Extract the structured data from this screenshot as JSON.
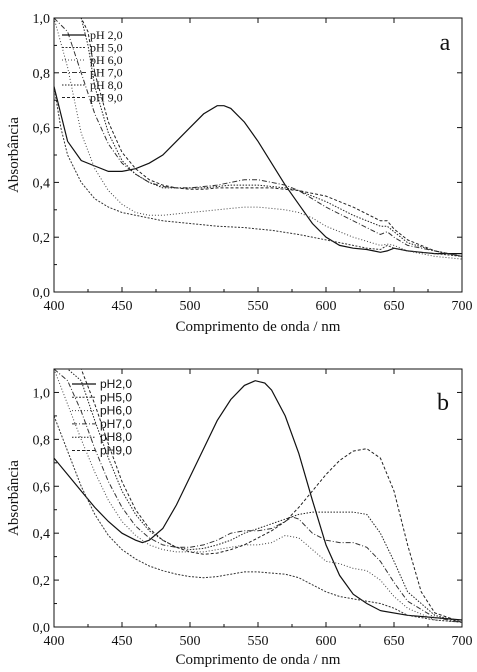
{
  "chart_data": [
    {
      "type": "line",
      "panel_label": "a",
      "xlabel": "Comprimento de onda / nm",
      "ylabel": "Absorbância",
      "xlim": [
        400,
        700
      ],
      "ylim": [
        0,
        1.0
      ],
      "xticks": [
        "400",
        "450",
        "500",
        "550",
        "600",
        "650",
        "700"
      ],
      "yticks": [
        "0,0",
        "0,2",
        "0,4",
        "0,6",
        "0,8",
        "1,0"
      ],
      "legend_position": "top-left",
      "series": [
        {
          "name": "pH 2,0",
          "color": "#111111",
          "dash": "",
          "x": [
            400,
            405,
            410,
            420,
            430,
            440,
            450,
            460,
            470,
            480,
            490,
            500,
            510,
            520,
            525,
            530,
            540,
            550,
            560,
            570,
            580,
            590,
            600,
            610,
            620,
            630,
            635,
            640,
            645,
            650,
            660,
            670,
            680,
            690,
            700
          ],
          "y": [
            0.75,
            0.65,
            0.55,
            0.48,
            0.46,
            0.44,
            0.44,
            0.45,
            0.47,
            0.5,
            0.55,
            0.6,
            0.65,
            0.68,
            0.68,
            0.67,
            0.62,
            0.55,
            0.47,
            0.39,
            0.32,
            0.25,
            0.2,
            0.17,
            0.16,
            0.155,
            0.15,
            0.145,
            0.15,
            0.16,
            0.15,
            0.145,
            0.14,
            0.14,
            0.14
          ]
        },
        {
          "name": "pH 5,0",
          "color": "#333333",
          "dash": "2,1.5",
          "x": [
            400,
            405,
            410,
            420,
            430,
            440,
            450,
            460,
            480,
            500,
            520,
            540,
            550,
            560,
            580,
            600,
            620,
            630,
            640,
            645,
            650,
            660,
            680,
            700
          ],
          "y": [
            0.75,
            0.6,
            0.5,
            0.4,
            0.34,
            0.31,
            0.29,
            0.28,
            0.26,
            0.25,
            0.24,
            0.235,
            0.23,
            0.225,
            0.21,
            0.19,
            0.17,
            0.16,
            0.155,
            0.17,
            0.16,
            0.15,
            0.14,
            0.13
          ]
        },
        {
          "name": "pH 6,0",
          "color": "#444444",
          "dash": "1,2",
          "x": [
            400,
            410,
            420,
            430,
            440,
            450,
            460,
            470,
            480,
            490,
            500,
            510,
            520,
            530,
            540,
            550,
            560,
            570,
            580,
            590,
            600,
            620,
            640,
            645,
            650,
            660,
            680,
            700
          ],
          "y": [
            1.0,
            0.82,
            0.58,
            0.45,
            0.37,
            0.32,
            0.29,
            0.28,
            0.28,
            0.285,
            0.29,
            0.295,
            0.3,
            0.305,
            0.31,
            0.31,
            0.305,
            0.3,
            0.29,
            0.27,
            0.24,
            0.2,
            0.17,
            0.175,
            0.17,
            0.15,
            0.13,
            0.12
          ]
        },
        {
          "name": "pH 7,0",
          "color": "#333333",
          "dash": "5,2,1,2",
          "x": [
            400,
            410,
            420,
            430,
            440,
            450,
            460,
            470,
            480,
            490,
            500,
            510,
            520,
            530,
            540,
            550,
            560,
            570,
            580,
            590,
            600,
            620,
            640,
            645,
            650,
            660,
            680,
            700
          ],
          "y": [
            1.0,
            0.95,
            0.8,
            0.65,
            0.54,
            0.47,
            0.43,
            0.4,
            0.385,
            0.38,
            0.38,
            0.385,
            0.39,
            0.4,
            0.41,
            0.41,
            0.4,
            0.39,
            0.37,
            0.34,
            0.31,
            0.26,
            0.21,
            0.22,
            0.2,
            0.17,
            0.15,
            0.13
          ]
        },
        {
          "name": "pH 8,0",
          "color": "#222222",
          "dash": "1.5,1.5",
          "x": [
            400,
            410,
            420,
            425,
            430,
            440,
            450,
            460,
            470,
            480,
            490,
            500,
            510,
            520,
            530,
            540,
            550,
            560,
            570,
            580,
            590,
            600,
            620,
            640,
            645,
            650,
            660,
            680,
            700
          ],
          "y": [
            1.0,
            1.0,
            1.0,
            0.9,
            0.75,
            0.58,
            0.48,
            0.43,
            0.4,
            0.38,
            0.38,
            0.38,
            0.38,
            0.385,
            0.39,
            0.39,
            0.39,
            0.385,
            0.38,
            0.37,
            0.35,
            0.33,
            0.28,
            0.24,
            0.24,
            0.22,
            0.18,
            0.15,
            0.13
          ]
        },
        {
          "name": "pH 9,0",
          "color": "#222222",
          "dash": "3,2",
          "x": [
            400,
            410,
            420,
            425,
            430,
            440,
            450,
            460,
            470,
            480,
            490,
            500,
            510,
            520,
            530,
            540,
            550,
            560,
            570,
            580,
            590,
            600,
            620,
            640,
            645,
            650,
            660,
            680,
            700
          ],
          "y": [
            1.0,
            1.0,
            1.0,
            0.95,
            0.8,
            0.62,
            0.51,
            0.45,
            0.41,
            0.39,
            0.38,
            0.375,
            0.375,
            0.38,
            0.38,
            0.38,
            0.38,
            0.38,
            0.375,
            0.37,
            0.36,
            0.35,
            0.31,
            0.26,
            0.26,
            0.23,
            0.19,
            0.15,
            0.13
          ]
        }
      ]
    },
    {
      "type": "line",
      "panel_label": "b",
      "xlabel": "Comprimento de onda / nm",
      "ylabel": "Absorbância",
      "xlim": [
        400,
        700
      ],
      "ylim": [
        0,
        1.1
      ],
      "xticks": [
        "400",
        "450",
        "500",
        "550",
        "600",
        "650",
        "700"
      ],
      "yticks": [
        "0,0",
        "0,2",
        "0,4",
        "0,6",
        "0,8",
        "1,0"
      ],
      "legend_position": "top-left",
      "series": [
        {
          "name": "pH2,0",
          "color": "#111111",
          "dash": "",
          "x": [
            400,
            410,
            420,
            430,
            440,
            450,
            460,
            465,
            470,
            480,
            490,
            500,
            510,
            520,
            530,
            540,
            548,
            555,
            560,
            570,
            580,
            590,
            600,
            610,
            620,
            630,
            640,
            660,
            680,
            700
          ],
          "y": [
            0.72,
            0.65,
            0.58,
            0.51,
            0.45,
            0.4,
            0.37,
            0.36,
            0.37,
            0.42,
            0.52,
            0.64,
            0.76,
            0.88,
            0.97,
            1.03,
            1.05,
            1.04,
            1.01,
            0.9,
            0.74,
            0.54,
            0.35,
            0.22,
            0.14,
            0.1,
            0.07,
            0.05,
            0.04,
            0.03
          ]
        },
        {
          "name": "pH5,0",
          "color": "#333333",
          "dash": "2,1.5",
          "x": [
            400,
            410,
            420,
            430,
            440,
            450,
            460,
            470,
            480,
            490,
            500,
            510,
            520,
            530,
            540,
            550,
            560,
            570,
            580,
            590,
            600,
            610,
            620,
            630,
            640,
            650,
            660,
            680,
            700
          ],
          "y": [
            0.9,
            0.75,
            0.6,
            0.48,
            0.39,
            0.33,
            0.29,
            0.26,
            0.24,
            0.225,
            0.215,
            0.21,
            0.215,
            0.225,
            0.235,
            0.235,
            0.23,
            0.225,
            0.21,
            0.18,
            0.15,
            0.13,
            0.12,
            0.11,
            0.1,
            0.08,
            0.05,
            0.03,
            0.02
          ]
        },
        {
          "name": "pH6,0",
          "color": "#444444",
          "dash": "1,2",
          "x": [
            400,
            410,
            420,
            430,
            440,
            450,
            460,
            470,
            480,
            490,
            500,
            510,
            520,
            530,
            540,
            550,
            560,
            570,
            580,
            590,
            600,
            610,
            620,
            630,
            640,
            650,
            660,
            680,
            700
          ],
          "y": [
            1.1,
            0.95,
            0.8,
            0.66,
            0.54,
            0.45,
            0.39,
            0.35,
            0.33,
            0.32,
            0.32,
            0.32,
            0.33,
            0.34,
            0.35,
            0.35,
            0.36,
            0.39,
            0.38,
            0.33,
            0.28,
            0.27,
            0.25,
            0.24,
            0.2,
            0.13,
            0.08,
            0.03,
            0.02
          ]
        },
        {
          "name": "pH7,0",
          "color": "#333333",
          "dash": "5,2,1,2",
          "x": [
            400,
            410,
            420,
            430,
            440,
            450,
            460,
            470,
            480,
            490,
            500,
            510,
            520,
            530,
            540,
            550,
            560,
            570,
            575,
            580,
            590,
            600,
            610,
            620,
            630,
            640,
            650,
            660,
            680,
            700
          ],
          "y": [
            1.1,
            1.05,
            0.92,
            0.76,
            0.62,
            0.51,
            0.43,
            0.38,
            0.35,
            0.34,
            0.34,
            0.35,
            0.37,
            0.4,
            0.41,
            0.41,
            0.42,
            0.45,
            0.47,
            0.46,
            0.4,
            0.37,
            0.36,
            0.36,
            0.34,
            0.28,
            0.19,
            0.11,
            0.04,
            0.02
          ]
        },
        {
          "name": "pH8,0",
          "color": "#222222",
          "dash": "1.5,1.5",
          "x": [
            400,
            410,
            420,
            430,
            440,
            450,
            460,
            470,
            480,
            490,
            500,
            510,
            520,
            530,
            540,
            550,
            560,
            570,
            580,
            590,
            600,
            610,
            620,
            630,
            640,
            650,
            660,
            680,
            700
          ],
          "y": [
            1.1,
            1.1,
            1.05,
            0.88,
            0.72,
            0.58,
            0.48,
            0.41,
            0.37,
            0.34,
            0.33,
            0.335,
            0.35,
            0.37,
            0.4,
            0.42,
            0.44,
            0.46,
            0.48,
            0.49,
            0.49,
            0.49,
            0.49,
            0.48,
            0.4,
            0.28,
            0.15,
            0.05,
            0.02
          ]
        },
        {
          "name": "pH9,0",
          "color": "#222222",
          "dash": "3,2",
          "x": [
            400,
            410,
            420,
            430,
            440,
            450,
            460,
            470,
            480,
            490,
            500,
            510,
            520,
            530,
            540,
            550,
            560,
            570,
            580,
            590,
            600,
            610,
            620,
            630,
            640,
            650,
            660,
            670,
            680,
            700
          ],
          "y": [
            1.1,
            1.1,
            1.1,
            0.95,
            0.78,
            0.62,
            0.5,
            0.42,
            0.37,
            0.34,
            0.32,
            0.31,
            0.315,
            0.33,
            0.35,
            0.38,
            0.41,
            0.45,
            0.51,
            0.58,
            0.65,
            0.71,
            0.75,
            0.76,
            0.72,
            0.58,
            0.35,
            0.15,
            0.06,
            0.02
          ]
        }
      ]
    }
  ]
}
